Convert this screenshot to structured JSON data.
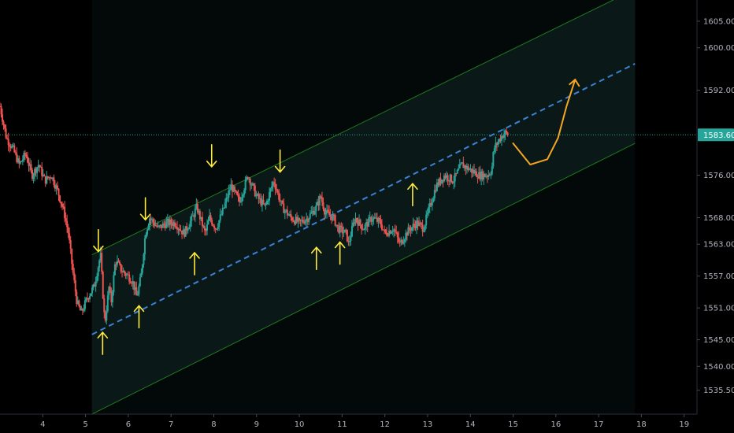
{
  "chart_data": {
    "type": "candlestick",
    "title": "",
    "xlabel": "",
    "ylabel": "",
    "x_ticks": [
      "4",
      "5",
      "6",
      "7",
      "8",
      "9",
      "10",
      "11",
      "12",
      "13",
      "14",
      "15",
      "16",
      "17",
      "18",
      "19"
    ],
    "x_range": [
      3.0,
      19.3
    ],
    "y_ticks": [
      "1605.00",
      "1600.00",
      "1592.00",
      "1576.00",
      "1568.00",
      "1563.00",
      "1557.00",
      "1551.00",
      "1545.00",
      "1540.00",
      "1535.50"
    ],
    "y_tick_values": [
      1605.0,
      1600.0,
      1592.0,
      1576.0,
      1568.0,
      1563.0,
      1557.0,
      1551.0,
      1545.0,
      1540.0,
      1535.5
    ],
    "ylim": [
      1531.0,
      1609.0
    ],
    "last_price": "1583.60",
    "last_price_value": 1583.6,
    "colors": {
      "up": "#26a69a",
      "down": "#ef5350",
      "channel_border": "#1e7a1e",
      "channel_fill": "#0b1a1a",
      "midline": "#3b82d6",
      "arrow": "#ffeb3b",
      "projection": "#f5a623",
      "price_label_bg": "#26a69a",
      "axis_text": "#b2b5be"
    },
    "channel": {
      "start": 5.15,
      "end": 17.85,
      "upper": [
        1561.0,
        1611.0
      ],
      "middle": [
        1546.0,
        1597.0
      ],
      "lower": [
        1531.0,
        1582.0
      ]
    },
    "price_path": [
      [
        3.0,
        1589
      ],
      [
        3.15,
        1583
      ],
      [
        3.3,
        1581
      ],
      [
        3.45,
        1578
      ],
      [
        3.6,
        1580
      ],
      [
        3.75,
        1576
      ],
      [
        3.9,
        1578
      ],
      [
        4.05,
        1575
      ],
      [
        4.2,
        1576
      ],
      [
        4.35,
        1573
      ],
      [
        4.5,
        1569
      ],
      [
        4.6,
        1565
      ],
      [
        4.7,
        1558
      ],
      [
        4.8,
        1552
      ],
      [
        4.9,
        1550
      ],
      [
        5.05,
        1553
      ],
      [
        5.2,
        1555
      ],
      [
        5.3,
        1559
      ],
      [
        5.35,
        1561
      ],
      [
        5.45,
        1548
      ],
      [
        5.55,
        1555
      ],
      [
        5.6,
        1552
      ],
      [
        5.7,
        1560
      ],
      [
        5.85,
        1558
      ],
      [
        6.0,
        1557
      ],
      [
        6.1,
        1556
      ],
      [
        6.2,
        1553
      ],
      [
        6.3,
        1557
      ],
      [
        6.4,
        1565
      ],
      [
        6.5,
        1568
      ],
      [
        6.7,
        1566
      ],
      [
        6.9,
        1567
      ],
      [
        7.1,
        1567
      ],
      [
        7.3,
        1565
      ],
      [
        7.5,
        1568
      ],
      [
        7.6,
        1570
      ],
      [
        7.8,
        1565
      ],
      [
        7.9,
        1568
      ],
      [
        8.05,
        1566
      ],
      [
        8.2,
        1569
      ],
      [
        8.4,
        1574
      ],
      [
        8.6,
        1571
      ],
      [
        8.8,
        1576
      ],
      [
        9.0,
        1572
      ],
      [
        9.2,
        1570
      ],
      [
        9.4,
        1575
      ],
      [
        9.6,
        1570
      ],
      [
        9.8,
        1568
      ],
      [
        10.0,
        1567
      ],
      [
        10.2,
        1568
      ],
      [
        10.4,
        1570
      ],
      [
        10.5,
        1572
      ],
      [
        10.6,
        1569
      ],
      [
        10.8,
        1568
      ],
      [
        10.9,
        1566
      ],
      [
        11.1,
        1565
      ],
      [
        11.15,
        1563
      ],
      [
        11.3,
        1568
      ],
      [
        11.5,
        1566
      ],
      [
        11.7,
        1568
      ],
      [
        11.9,
        1567
      ],
      [
        12.0,
        1565
      ],
      [
        12.2,
        1566
      ],
      [
        12.35,
        1563
      ],
      [
        12.5,
        1565
      ],
      [
        12.6,
        1566
      ],
      [
        12.75,
        1567
      ],
      [
        12.9,
        1566
      ],
      [
        13.05,
        1570
      ],
      [
        13.2,
        1574
      ],
      [
        13.4,
        1576
      ],
      [
        13.6,
        1575
      ],
      [
        13.8,
        1578
      ],
      [
        14.0,
        1577
      ],
      [
        14.2,
        1576
      ],
      [
        14.4,
        1576
      ],
      [
        14.5,
        1577
      ],
      [
        14.55,
        1581
      ],
      [
        14.7,
        1583
      ],
      [
        14.8,
        1584
      ],
      [
        14.9,
        1583.6
      ]
    ],
    "arrows": [
      {
        "dir": "down",
        "x": 5.3,
        "y": 1561
      },
      {
        "dir": "up",
        "x": 5.4,
        "y": 1547
      },
      {
        "dir": "up",
        "x": 6.25,
        "y": 1552
      },
      {
        "dir": "down",
        "x": 6.4,
        "y": 1567
      },
      {
        "dir": "up",
        "x": 7.55,
        "y": 1562
      },
      {
        "dir": "down",
        "x": 7.95,
        "y": 1577
      },
      {
        "dir": "down",
        "x": 9.55,
        "y": 1576
      },
      {
        "dir": "up",
        "x": 10.4,
        "y": 1563
      },
      {
        "dir": "up",
        "x": 10.95,
        "y": 1564
      },
      {
        "dir": "up",
        "x": 12.65,
        "y": 1575
      }
    ],
    "projection": [
      [
        15.0,
        1582
      ],
      [
        15.4,
        1578
      ],
      [
        15.8,
        1579
      ],
      [
        16.05,
        1583
      ],
      [
        16.25,
        1589
      ],
      [
        16.45,
        1594
      ]
    ]
  }
}
